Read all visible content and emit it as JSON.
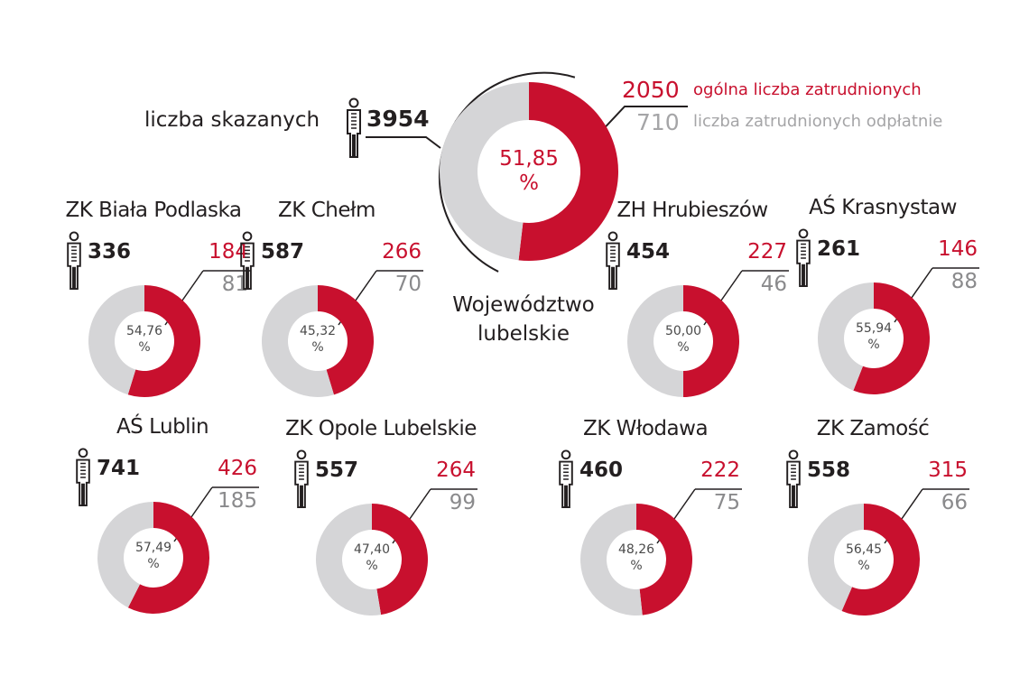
{
  "colors": {
    "employed": "#c8102e",
    "rest": "#d5d5d7",
    "text": "#231f20",
    "paid": "#8a8a8c"
  },
  "main": {
    "label_convicted": "liczba skazanych",
    "label_employed": "ogólna liczba zatrudnionych",
    "label_paid": "liczba zatrudnionych odpłatnie",
    "region_line1": "Województwo",
    "region_line2": "lubelskie"
  },
  "chart_data": {
    "type": "pie",
    "variant": "donut",
    "items": [
      {
        "name": "Województwo lubelskie",
        "convicted": "3954",
        "employed": "2050",
        "employed_paid": "710",
        "percent": 51.85,
        "percent_label": "51,85",
        "unit": "%"
      },
      {
        "name": "ZK Biała Podlaska",
        "convicted": "336",
        "employed": "184",
        "employed_paid": "81",
        "percent": 54.76,
        "percent_label": "54,76",
        "unit": "%"
      },
      {
        "name": "ZK Chełm",
        "convicted": "587",
        "employed": "266",
        "employed_paid": "70",
        "percent": 45.32,
        "percent_label": "45,32",
        "unit": "%"
      },
      {
        "name": "ZH Hrubieszów",
        "convicted": "454",
        "employed": "227",
        "employed_paid": "46",
        "percent": 50.0,
        "percent_label": "50,00",
        "unit": "%"
      },
      {
        "name": "AŚ Krasnystaw",
        "convicted": "261",
        "employed": "146",
        "employed_paid": "88",
        "percent": 55.94,
        "percent_label": "55,94",
        "unit": "%"
      },
      {
        "name": "AŚ Lublin",
        "convicted": "741",
        "employed": "426",
        "employed_paid": "185",
        "percent": 57.49,
        "percent_label": "57,49",
        "unit": "%"
      },
      {
        "name": "ZK Opole Lubelskie",
        "convicted": "557",
        "employed": "264",
        "employed_paid": "99",
        "percent": 47.4,
        "percent_label": "47,40",
        "unit": "%"
      },
      {
        "name": "ZK Włodawa",
        "convicted": "460",
        "employed": "222",
        "employed_paid": "75",
        "percent": 48.26,
        "percent_label": "48,26",
        "unit": "%"
      },
      {
        "name": "ZK Zamość",
        "convicted": "558",
        "employed": "315",
        "employed_paid": "66",
        "percent": 56.45,
        "percent_label": "56,45",
        "unit": "%"
      }
    ]
  }
}
